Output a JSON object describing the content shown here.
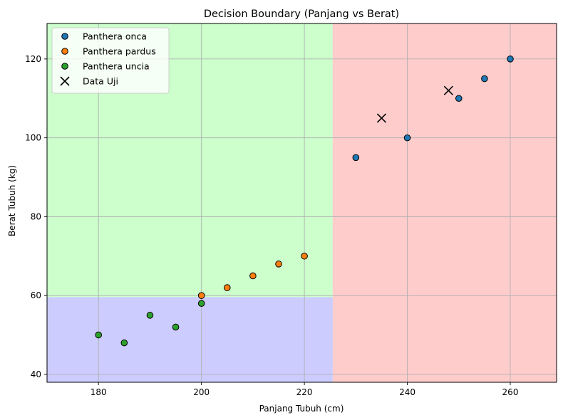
{
  "chart_data": {
    "type": "scatter",
    "title": "Decision Boundary (Panjang vs Berat)",
    "xlabel": "Panjang Tubuh (cm)",
    "ylabel": "Berat Tubuh (kg)",
    "xlim": [
      170,
      269
    ],
    "ylim": [
      38,
      129
    ],
    "xticks": [
      180,
      200,
      220,
      240,
      260
    ],
    "yticks": [
      40,
      60,
      80,
      100,
      120
    ],
    "grid": true,
    "legend_position": "top-left",
    "regions": [
      {
        "name": "green-region",
        "color": "#ccffcc",
        "x_range": [
          170,
          225.5
        ],
        "y_range": [
          38,
          129
        ]
      },
      {
        "name": "red-region",
        "color": "#ffcccc",
        "x_range": [
          225.5,
          269
        ],
        "y_range": [
          38,
          129
        ]
      },
      {
        "name": "blue-region",
        "color": "#ccccff",
        "x_range": [
          170,
          225.5
        ],
        "y_range": [
          38,
          59.6
        ]
      }
    ],
    "series": [
      {
        "name": "Panthera onca",
        "color": "#1f77b4",
        "marker": "circle",
        "points": [
          [
            230,
            95
          ],
          [
            240,
            100
          ],
          [
            250,
            110
          ],
          [
            255,
            115
          ],
          [
            260,
            120
          ]
        ]
      },
      {
        "name": "Panthera pardus",
        "color": "#ff7f0e",
        "marker": "circle",
        "points": [
          [
            200,
            60
          ],
          [
            205,
            62
          ],
          [
            210,
            65
          ],
          [
            215,
            68
          ],
          [
            220,
            70
          ]
        ]
      },
      {
        "name": "Panthera uncia",
        "color": "#2ca02c",
        "marker": "circle",
        "points": [
          [
            180,
            50
          ],
          [
            185,
            48
          ],
          [
            190,
            55
          ],
          [
            195,
            52
          ],
          [
            200,
            58
          ]
        ]
      },
      {
        "name": "Data Uji",
        "color": "#000000",
        "marker": "x",
        "points": [
          [
            235,
            105
          ],
          [
            248,
            112
          ]
        ]
      }
    ]
  }
}
